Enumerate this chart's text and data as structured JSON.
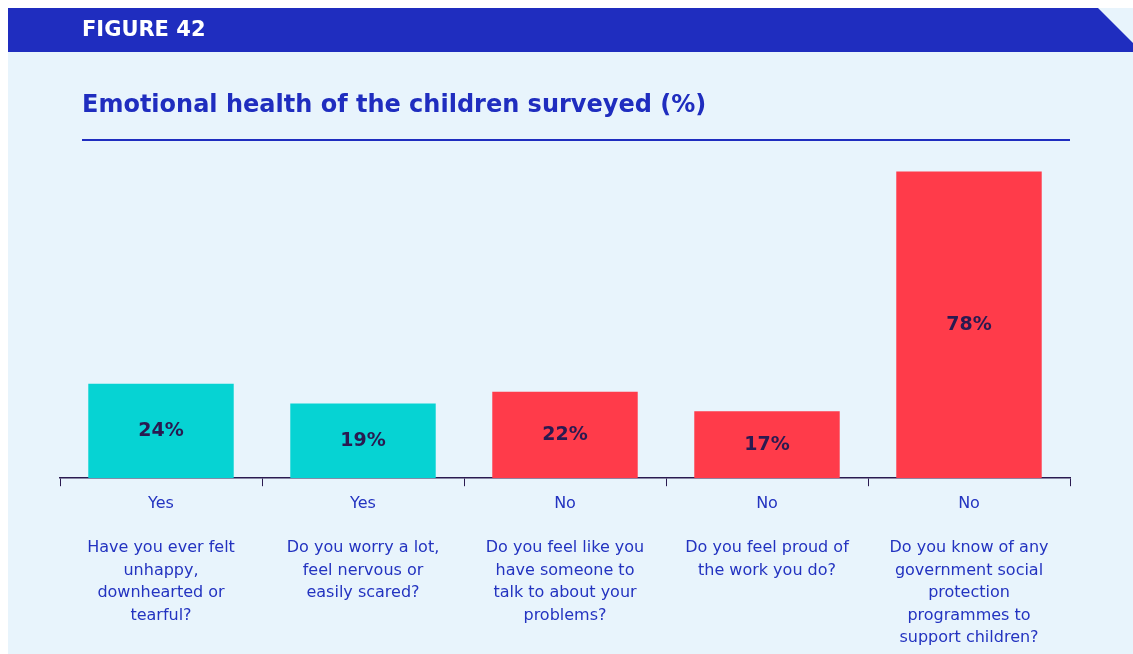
{
  "chart_data": {
    "type": "bar",
    "title": "Emotional health of the children surveyed (%)",
    "annotations": [
      "FIGURE 42"
    ],
    "categories": [
      "Yes\nHave you ever felt unhappy, downhearted or tearful?",
      "Yes\nDo you worry a lot, feel nervous or easily scared?",
      "No\nDo you feel like you have someone to talk to about your problems?",
      "No\nDo you feel proud of the work you do?",
      "No\nDo you know of any government social protection programmes to support children?"
    ],
    "values": [
      24,
      19,
      22,
      17,
      78
    ],
    "colors": [
      "#06d3d3",
      "#06d3d3",
      "#ff3b4a",
      "#ff3b4a",
      "#ff3b4a"
    ],
    "value_labels": [
      "24%",
      "19%",
      "22%",
      "17%",
      "78%"
    ],
    "grid": false,
    "legend": false
  }
}
